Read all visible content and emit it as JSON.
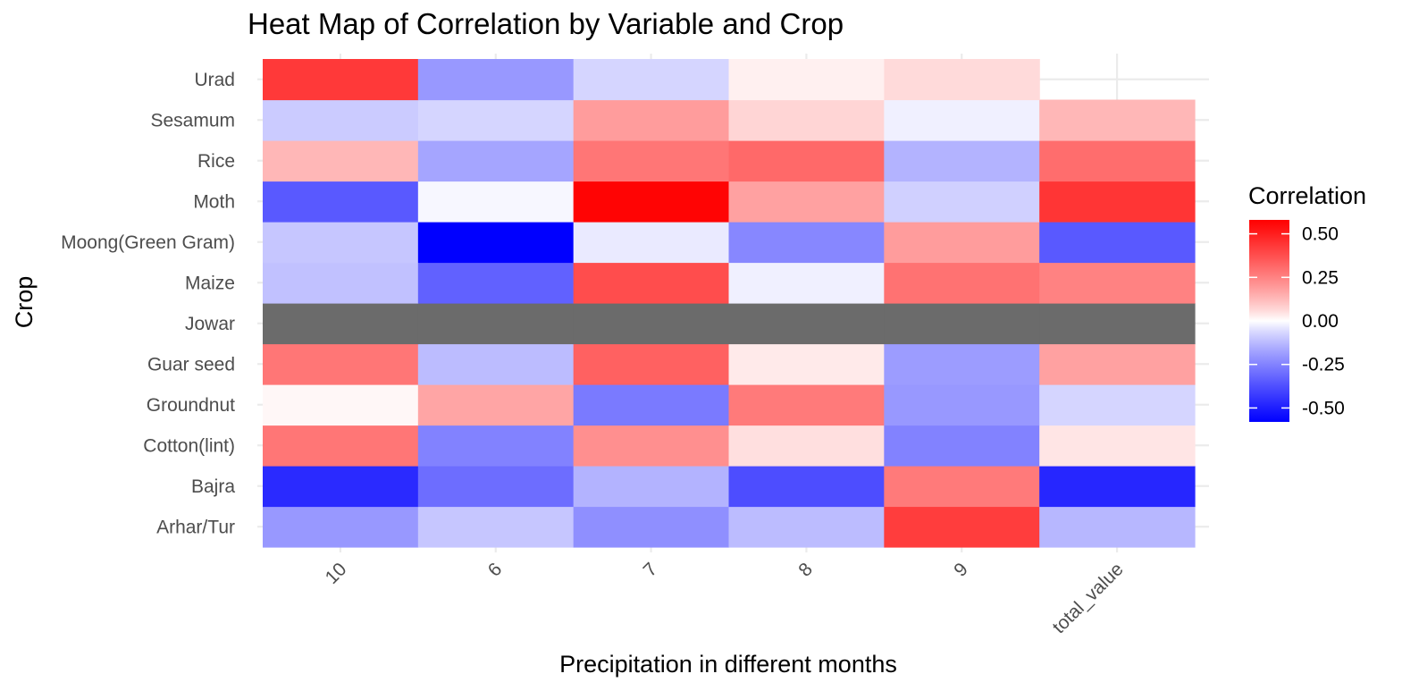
{
  "chart_data": {
    "type": "heatmap",
    "title": "Heat Map of Correlation by Variable and Crop",
    "xlabel": "Precipitation in different months",
    "ylabel": "Crop",
    "x_categories": [
      "10",
      "6",
      "7",
      "8",
      "9",
      "total_value"
    ],
    "y_categories": [
      "Arhar/Tur",
      "Bajra",
      "Cotton(lint)",
      "Groundnut",
      "Guar seed",
      "Jowar",
      "Maize",
      "Moong(Green Gram)",
      "Moth",
      "Rice",
      "Sesamum",
      "Urad"
    ],
    "values": [
      [
        -0.2,
        -0.1,
        -0.22,
        -0.12,
        0.42,
        -0.13
      ],
      [
        -0.47,
        -0.3,
        -0.14,
        -0.38,
        0.27,
        -0.48
      ],
      [
        0.28,
        -0.25,
        0.22,
        0.05,
        -0.25,
        0.04
      ],
      [
        0.01,
        0.17,
        -0.27,
        0.27,
        -0.2,
        -0.07
      ],
      [
        0.28,
        -0.12,
        0.33,
        0.03,
        -0.19,
        0.18
      ],
      [
        null,
        null,
        null,
        null,
        null,
        null
      ],
      [
        -0.11,
        -0.33,
        0.38,
        -0.02,
        0.29,
        0.25
      ],
      [
        -0.1,
        -0.58,
        -0.03,
        -0.24,
        0.19,
        -0.35
      ],
      [
        -0.35,
        -0.01,
        0.57,
        0.18,
        -0.08,
        0.44
      ],
      [
        0.13,
        -0.17,
        0.28,
        0.31,
        -0.14,
        0.3
      ],
      [
        -0.09,
        -0.07,
        0.19,
        0.07,
        -0.02,
        0.13
      ],
      [
        0.43,
        -0.2,
        -0.07,
        0.02,
        0.06,
        null
      ]
    ],
    "missing_cells": [
      [
        11,
        5
      ]
    ],
    "na_color": "#6b6b6b",
    "legend": {
      "title": "Correlation",
      "position": "right",
      "limits": [
        -0.58,
        0.58
      ],
      "breaks": [
        0.5,
        0.25,
        0,
        -0.25,
        -0.5
      ],
      "break_labels": [
        "0.50",
        "0.25",
        "0.00",
        "-0.25",
        "-0.50"
      ],
      "low_color": "#0000ff",
      "mid_color": "#ffffff",
      "high_color": "#ff0000"
    },
    "grid": true
  }
}
